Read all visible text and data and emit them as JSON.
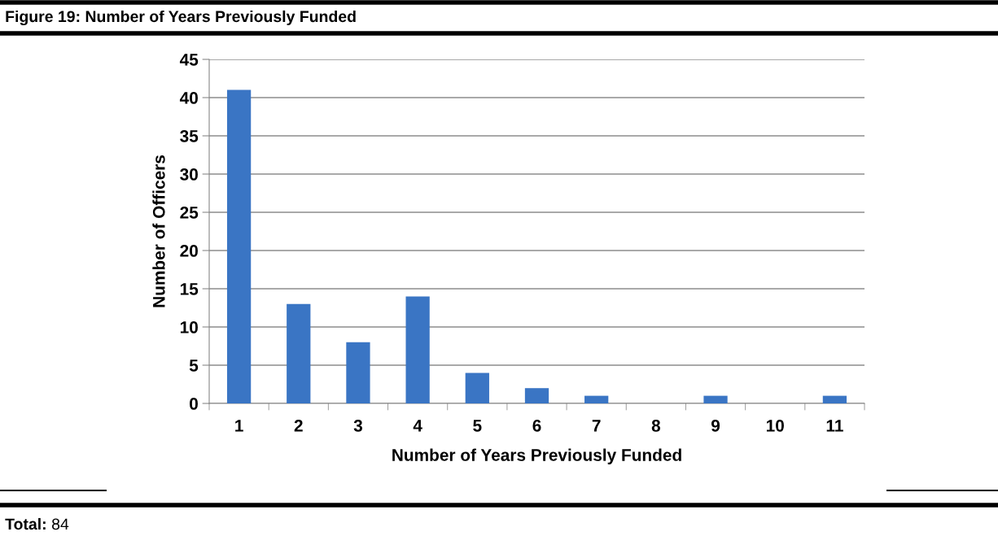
{
  "chart_data": {
    "type": "bar",
    "title": "Figure 19: Number of Years Previously Funded",
    "xlabel": "Number of Years Previously Funded",
    "ylabel": "Number of Officers",
    "categories": [
      "1",
      "2",
      "3",
      "4",
      "5",
      "6",
      "7",
      "8",
      "9",
      "10",
      "11"
    ],
    "values": [
      41,
      13,
      8,
      14,
      4,
      2,
      1,
      0,
      1,
      0,
      1
    ],
    "color": "#3a75c4",
    "ylim": [
      0,
      45
    ],
    "yticks": [
      0,
      5,
      10,
      15,
      20,
      25,
      30,
      35,
      40,
      45
    ],
    "grid": "y",
    "annotations": [
      "Total: 84"
    ]
  }
}
